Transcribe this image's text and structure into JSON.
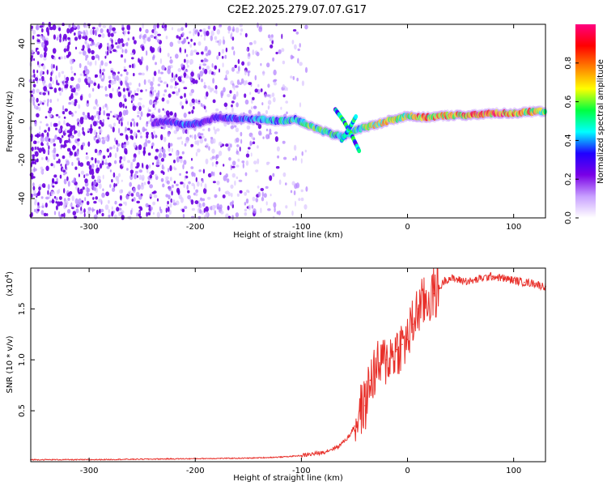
{
  "title": "C2E2.2025.279.07.07.G17",
  "colors": {
    "scatter": "#7a00e6",
    "snr_line": "#e8302a",
    "axis": "#000000"
  },
  "colorbar": {
    "label": "Normalized spectral amplitude",
    "ticks": [
      "0.0",
      "0.2",
      "0.4",
      "0.6",
      "0.8"
    ],
    "tick_values": [
      0.0,
      0.2,
      0.4,
      0.6,
      0.8
    ],
    "range": [
      0.0,
      1.0
    ],
    "stops": [
      "#ffffff",
      "#c8a0ff",
      "#7a00e6",
      "#2000ff",
      "#00ffff",
      "#00ff40",
      "#ffff00",
      "#ff8000",
      "#ff0000",
      "#ff0080"
    ]
  },
  "chart_data": [
    {
      "type": "heatmap",
      "name": "spectrogram",
      "title": "C2E2.2025.279.07.07.G17",
      "xlabel": "Height of straight line (km)",
      "ylabel": "Frequency (Hz)",
      "xlim": [
        -355,
        130
      ],
      "ylim": [
        -50,
        50
      ],
      "xticks": [
        -300,
        -200,
        -100,
        0,
        100
      ],
      "xtick_labels": [
        "-300",
        "-200",
        "-100",
        "0",
        "100"
      ],
      "yticks": [
        -40,
        -20,
        0,
        20,
        40
      ],
      "ytick_labels": [
        "-40",
        "-20",
        "0",
        "20",
        "40"
      ],
      "noise_region_x": [
        -355,
        -95
      ],
      "signal_track": {
        "x": [
          -240,
          -225,
          -210,
          -195,
          -180,
          -160,
          -140,
          -120,
          -105,
          -90,
          -80,
          -70,
          -60,
          -50,
          -40,
          -30,
          -20,
          -10,
          0,
          10,
          20,
          40,
          60,
          80,
          100,
          120,
          130
        ],
        "y": [
          -1,
          0,
          -2,
          -1,
          2,
          1,
          1,
          0,
          1,
          -3,
          -5,
          -7,
          -8,
          -5,
          -3,
          -2,
          0,
          1,
          3,
          2,
          2,
          3,
          3,
          4,
          4,
          5,
          5
        ],
        "amplitude": [
          0.3,
          0.35,
          0.4,
          0.35,
          0.35,
          0.4,
          0.45,
          0.5,
          0.55,
          0.6,
          0.6,
          0.55,
          0.5,
          0.55,
          0.65,
          0.7,
          0.75,
          0.8,
          0.7,
          0.85,
          0.8,
          0.8,
          0.9,
          0.95,
          0.9,
          0.75,
          0.6
        ]
      },
      "branches": [
        {
          "x": [
            -68,
            -60,
            -52,
            -45
          ],
          "y": [
            6,
            0,
            -8,
            -16
          ]
        },
        {
          "x": [
            -62,
            -55,
            -48
          ],
          "y": [
            -10,
            -4,
            3
          ]
        }
      ]
    },
    {
      "type": "line",
      "name": "snr",
      "xlabel": "Height of straight line (km)",
      "ylabel": "SNR (10 * v/v)",
      "y_multiplier": "(x10",
      "y_multiplier_exp": "4",
      "y_multiplier_close": ")",
      "xlim": [
        -355,
        130
      ],
      "ylim": [
        0,
        1.9
      ],
      "xticks": [
        -300,
        -200,
        -100,
        0,
        100
      ],
      "xtick_labels": [
        "-300",
        "-200",
        "-100",
        "0",
        "100"
      ],
      "yticks": [
        0.5,
        1.0,
        1.5
      ],
      "ytick_labels": [
        "0.5",
        "1.0",
        "1.5"
      ],
      "x": [
        -355,
        -300,
        -250,
        -200,
        -150,
        -120,
        -100,
        -80,
        -65,
        -55,
        -50,
        -45,
        -40,
        -35,
        -30,
        -25,
        -20,
        -15,
        -10,
        -5,
        0,
        5,
        10,
        15,
        20,
        25,
        30,
        35,
        40,
        50,
        60,
        70,
        80,
        90,
        100,
        110,
        120,
        125,
        130
      ],
      "y": [
        0.02,
        0.02,
        0.025,
        0.03,
        0.035,
        0.045,
        0.06,
        0.09,
        0.15,
        0.25,
        0.35,
        0.5,
        0.55,
        0.8,
        0.9,
        0.95,
        1.0,
        1.05,
        1.1,
        1.15,
        1.2,
        1.35,
        1.5,
        1.55,
        1.6,
        1.65,
        1.7,
        1.78,
        1.8,
        1.78,
        1.77,
        1.8,
        1.82,
        1.8,
        1.78,
        1.76,
        1.75,
        1.73,
        1.72
      ]
    }
  ]
}
